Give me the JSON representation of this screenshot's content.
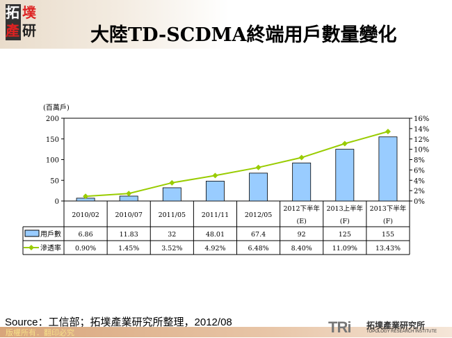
{
  "header": {
    "title": "大陸TD-SCDMA終端用戶數量變化",
    "logo_text": [
      "拓",
      "墣",
      "產",
      "研"
    ]
  },
  "chart_data": {
    "type": "bar+line",
    "categories": [
      "2010/02",
      "2010/07",
      "2011/05",
      "2011/11",
      "2012/05",
      "2012下半年\n(E)",
      "2013上半年\n(F)",
      "2013下半年\n(F)"
    ],
    "series": [
      {
        "name": "用戶數",
        "type": "bar",
        "axis": "left",
        "values": [
          6.86,
          11.83,
          32,
          48.01,
          67.4,
          92,
          125,
          155
        ],
        "labels": [
          "6.86",
          "11.83",
          "32",
          "48.01",
          "67.4",
          "92",
          "125",
          "155"
        ],
        "color": "#99ccff"
      },
      {
        "name": "滲透率",
        "type": "line",
        "axis": "right",
        "values": [
          0.9,
          1.45,
          3.52,
          4.92,
          6.48,
          8.4,
          11.09,
          13.43
        ],
        "labels": [
          "0.90%",
          "1.45%",
          "3.52%",
          "4.92%",
          "6.48%",
          "8.40%",
          "11.09%",
          "13.43%"
        ],
        "color": "#99cc00"
      }
    ],
    "ylabel": "(百萬戶)",
    "ylim": [
      0,
      200
    ],
    "yticks": [
      "0",
      "50",
      "100",
      "150",
      "200"
    ],
    "y2lim": [
      0,
      16
    ],
    "y2ticks": [
      "0%",
      "2%",
      "4%",
      "6%",
      "8%",
      "10%",
      "12%",
      "14%",
      "16%"
    ],
    "data_table": true,
    "grid": false
  },
  "footer": {
    "source": "Source：工信部；拓墣產業研究所整理，2012/08",
    "copyright": "版權所有．翻印必究",
    "brand_logo": "TRi",
    "brand_name": "拓墣產業研究所",
    "brand_english": "TOPOLOGY RESEARCH INSTITUTE"
  }
}
